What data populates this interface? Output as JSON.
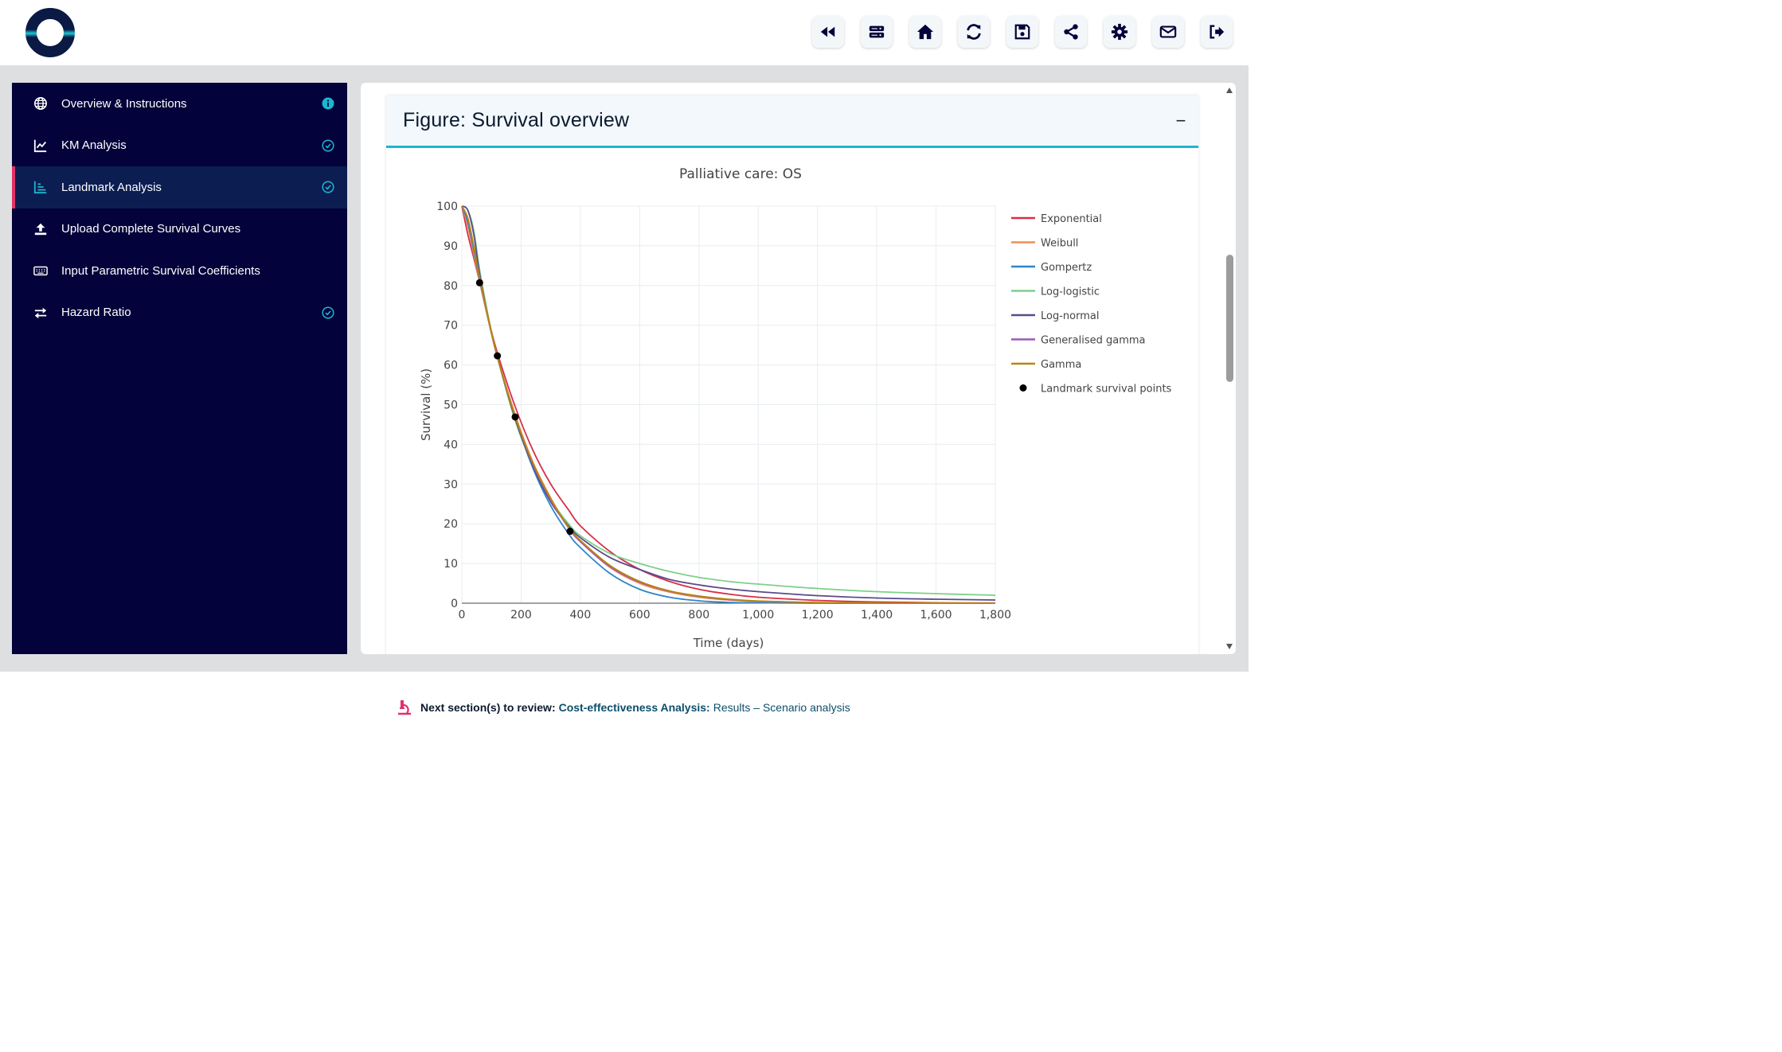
{
  "header": {
    "toolbar": [
      {
        "name": "rewind-icon"
      },
      {
        "name": "server-icon"
      },
      {
        "name": "home-icon"
      },
      {
        "name": "refresh-icon"
      },
      {
        "name": "save-icon"
      },
      {
        "name": "share-icon"
      },
      {
        "name": "settings-gear-icon"
      },
      {
        "name": "mail-icon"
      },
      {
        "name": "logout-icon"
      }
    ]
  },
  "sidebar": {
    "items": [
      {
        "label": "Overview & Instructions",
        "icon": "globe-icon",
        "status": "info"
      },
      {
        "label": "KM Analysis",
        "icon": "line-chart-icon",
        "status": "check"
      },
      {
        "label": "Landmark Analysis",
        "icon": "bar-chart-icon",
        "status": "check"
      },
      {
        "label": "Upload Complete Survival Curves",
        "icon": "upload-icon",
        "status": ""
      },
      {
        "label": "Input Parametric Survival Coefficients",
        "icon": "keyboard-icon",
        "status": ""
      },
      {
        "label": "Hazard Ratio",
        "icon": "exchange-icon",
        "status": "check"
      }
    ]
  },
  "figure": {
    "title": "Figure: Survival overview",
    "collapse_label": "−"
  },
  "chart_data": {
    "type": "line",
    "title": "Palliative care: OS",
    "xlabel": "Time (days)",
    "ylabel": "Survival (%)",
    "xlim": [
      0,
      1800
    ],
    "ylim": [
      0,
      100
    ],
    "xticks": [
      0,
      200,
      400,
      600,
      800,
      1000,
      1200,
      1400,
      1600,
      1800
    ],
    "xtick_labels": [
      "0",
      "200",
      "400",
      "600",
      "800",
      "1,000",
      "1,200",
      "1,400",
      "1,600",
      "1,800"
    ],
    "yticks": [
      0,
      10,
      20,
      30,
      40,
      50,
      60,
      70,
      80,
      90,
      100
    ],
    "grid": true,
    "legend_position": "right",
    "x": [
      0,
      20,
      40,
      60,
      90,
      120,
      180,
      240,
      300,
      360,
      400,
      500,
      600,
      700,
      800,
      900,
      1000,
      1200,
      1400,
      1600,
      1800
    ],
    "series": [
      {
        "name": "Exponential",
        "color": "#d62f4b",
        "values": [
          100,
          93,
          87,
          81,
          71.5,
          63,
          49.5,
          38.5,
          30,
          23.5,
          19.5,
          13,
          8.5,
          5.5,
          3.5,
          2.3,
          1.5,
          0.7,
          0.3,
          0.1,
          0.05
        ]
      },
      {
        "name": "Weibull",
        "color": "#f28c5a",
        "values": [
          100,
          95,
          88,
          81,
          71,
          62,
          47.5,
          35.5,
          26.5,
          19,
          15.5,
          9,
          5,
          2.8,
          1.5,
          0.8,
          0.4,
          0.1,
          0.03,
          0.01,
          0
        ]
      },
      {
        "name": "Gompertz",
        "color": "#2e86c9",
        "values": [
          100,
          96,
          89,
          81.5,
          71.5,
          62,
          46.5,
          34,
          24.5,
          17.5,
          14,
          7.5,
          3.5,
          1.5,
          0.6,
          0.2,
          0.1,
          0,
          0,
          0,
          0
        ]
      },
      {
        "name": "Log-logistic",
        "color": "#7fcf8a",
        "values": [
          100,
          99,
          94,
          84,
          72,
          62,
          46,
          34.5,
          26,
          20,
          17,
          12.5,
          10,
          8,
          6.5,
          5.5,
          4.8,
          3.7,
          2.9,
          2.4,
          2
        ]
      },
      {
        "name": "Log-normal",
        "color": "#5a4a8a",
        "values": [
          100,
          99,
          93,
          83,
          71.5,
          62,
          46.5,
          34.5,
          25.5,
          19.5,
          16.5,
          11.5,
          8.5,
          6,
          4.6,
          3.6,
          2.9,
          1.9,
          1.3,
          1,
          0.8
        ]
      },
      {
        "name": "Generalised gamma",
        "color": "#9b59b6",
        "values": [
          100,
          97,
          90,
          82,
          71.5,
          62,
          47,
          35,
          26,
          19,
          15.5,
          9.2,
          5.3,
          3,
          1.7,
          0.9,
          0.5,
          0.15,
          0.05,
          0.02,
          0
        ]
      },
      {
        "name": "Gamma",
        "color": "#b8860b",
        "values": [
          100,
          97,
          90,
          82,
          71.5,
          62,
          47,
          35.3,
          26.3,
          19.2,
          15.8,
          9.5,
          5.5,
          3.1,
          1.8,
          1,
          0.55,
          0.17,
          0.05,
          0.02,
          0
        ]
      }
    ],
    "points": {
      "name": "Landmark survival points",
      "color": "#000000",
      "x": [
        60,
        120,
        180,
        365
      ],
      "y": [
        80.7,
        62.3,
        46.9,
        18.1
      ]
    }
  },
  "footer": {
    "next_label": "Next section(s) to review:",
    "next_section": "Cost-effectiveness Analysis:",
    "next_detail": "Results – Scenario analysis"
  }
}
